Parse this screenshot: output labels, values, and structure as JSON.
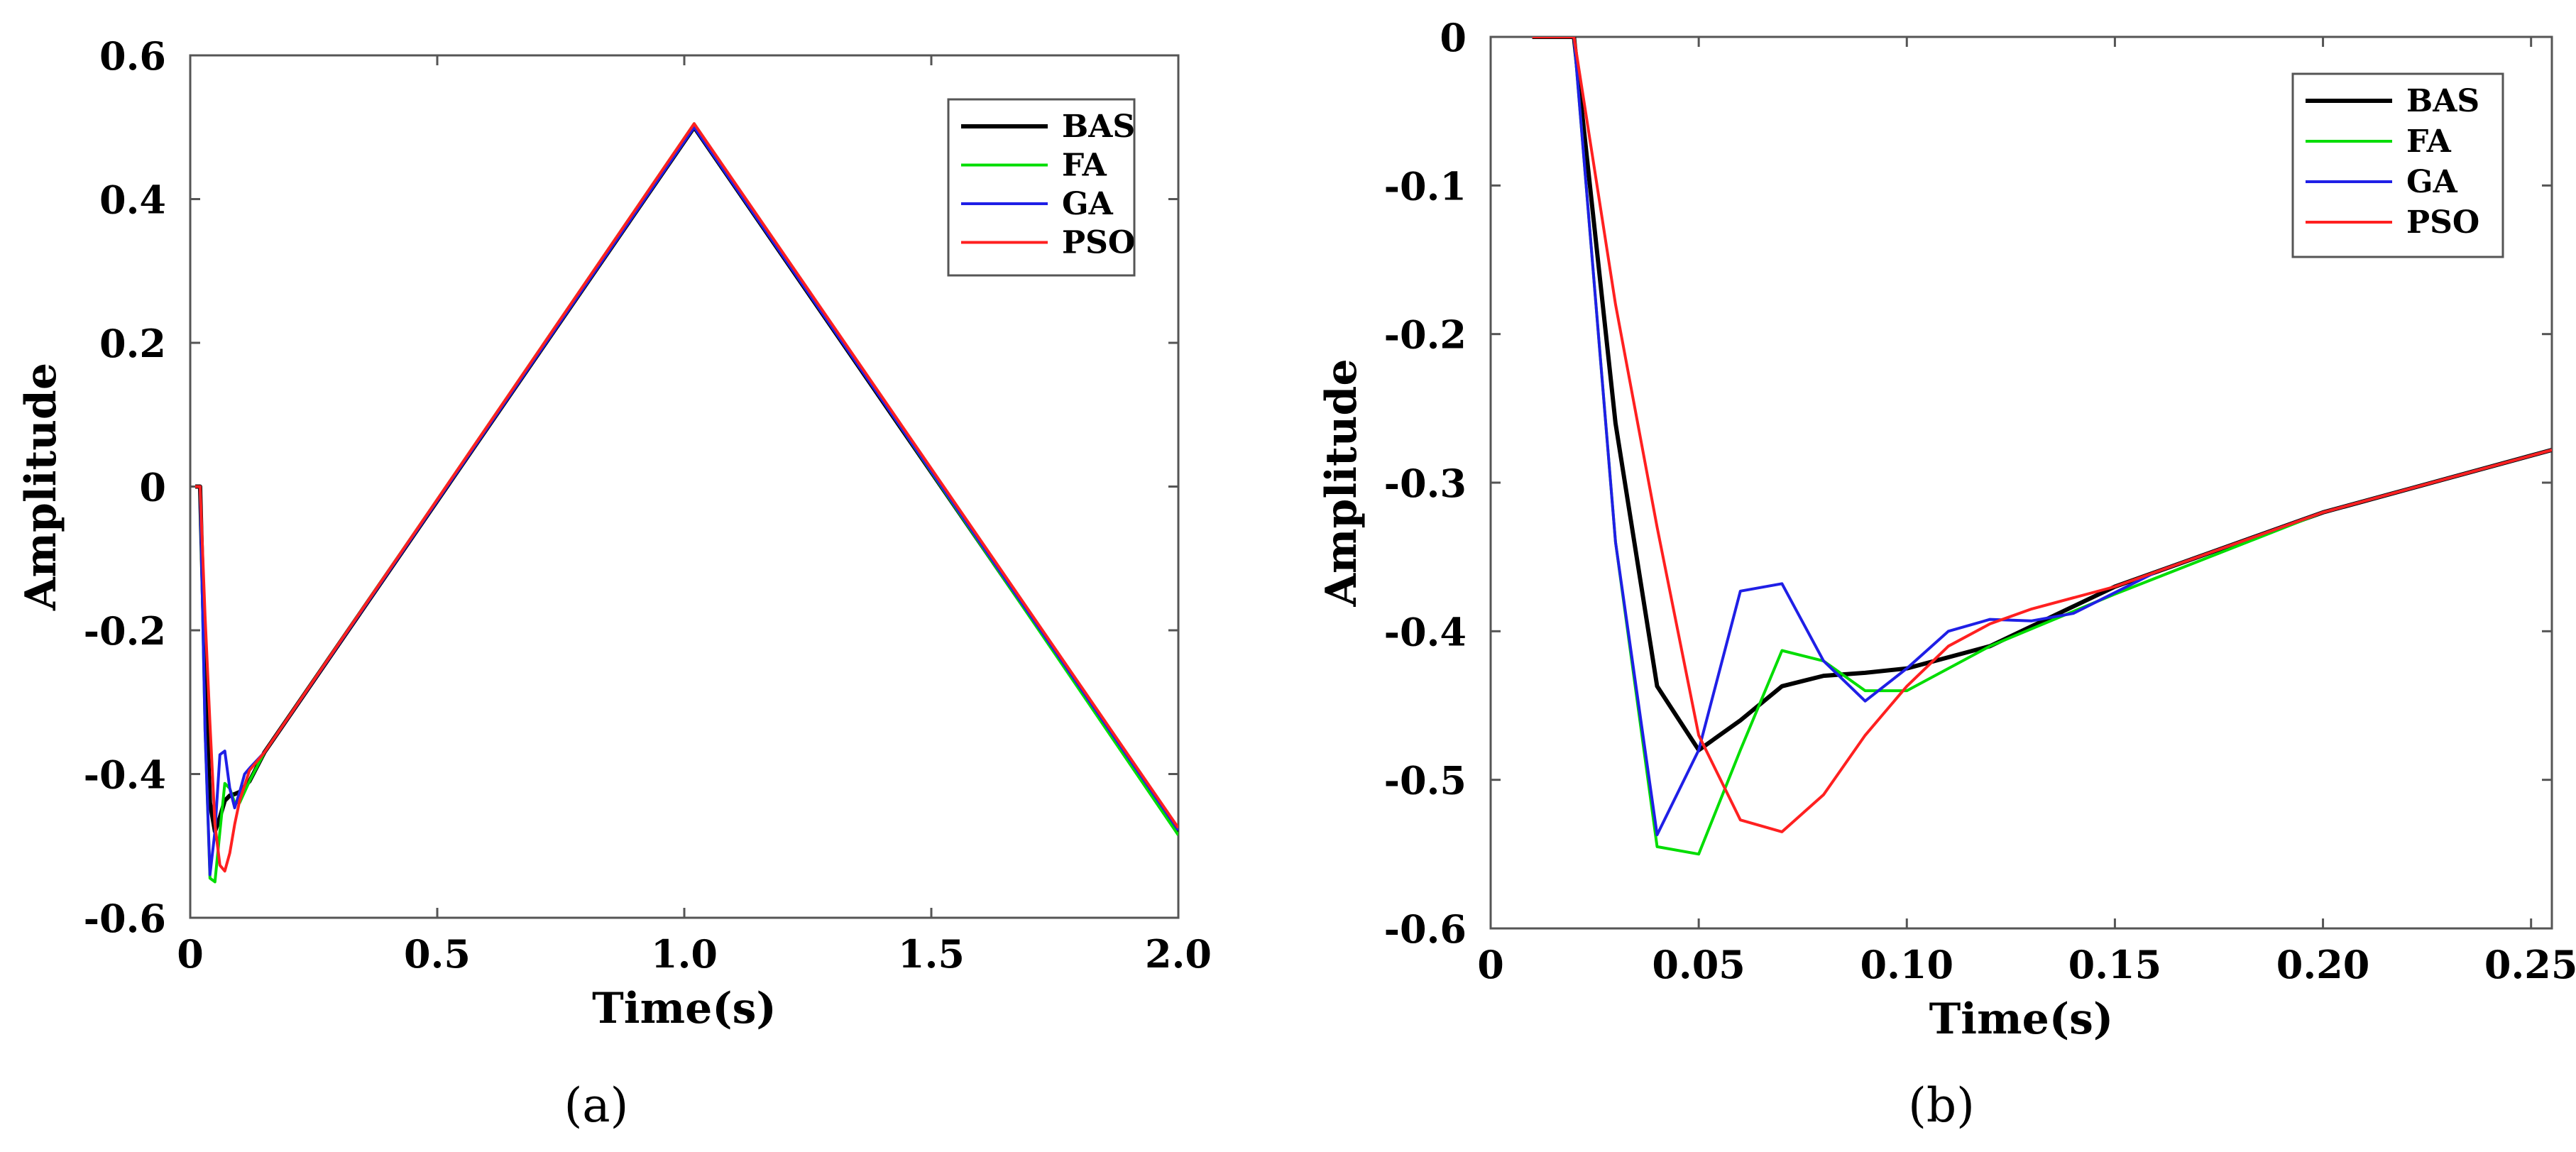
{
  "chart_data": [
    {
      "type": "line",
      "caption": "(a)",
      "xlabel": "Time(s)",
      "ylabel": "Amplitude",
      "xlim": [
        0,
        2.0
      ],
      "ylim": [
        -0.6,
        0.6
      ],
      "xticks": [
        0,
        0.5,
        1.0,
        1.5,
        2.0
      ],
      "xtick_labels": [
        "0",
        "0.5",
        "1.0",
        "1.5",
        "2.0"
      ],
      "yticks": [
        0.6,
        0.4,
        0.2,
        0,
        -0.2,
        -0.4,
        -0.6
      ],
      "ytick_labels": [
        "0.6",
        "0.4",
        "0.2",
        "0",
        "-0.2",
        "-0.4",
        "-0.6"
      ],
      "legend_position": "top-right",
      "series": [
        {
          "name": "BAS",
          "color": "#000000",
          "x": [
            0.01,
            0.02,
            0.03,
            0.04,
            0.05,
            0.06,
            0.07,
            0.08,
            0.09,
            0.1,
            0.12,
            0.15,
            1.02,
            2.0
          ],
          "y": [
            0,
            0,
            -0.26,
            -0.44,
            -0.48,
            -0.46,
            -0.437,
            -0.43,
            -0.428,
            -0.425,
            -0.41,
            -0.37,
            0.5,
            -0.48
          ]
        },
        {
          "name": "FA",
          "color": "#00dd00",
          "x": [
            0.01,
            0.02,
            0.03,
            0.04,
            0.05,
            0.06,
            0.07,
            0.08,
            0.09,
            0.1,
            0.12,
            0.15,
            1.02,
            2.0
          ],
          "y": [
            0,
            0,
            -0.34,
            -0.545,
            -0.55,
            -0.48,
            -0.413,
            -0.42,
            -0.44,
            -0.44,
            -0.41,
            -0.37,
            0.505,
            -0.485
          ]
        },
        {
          "name": "GA",
          "color": "#1f1fe6",
          "x": [
            0.01,
            0.02,
            0.03,
            0.04,
            0.05,
            0.06,
            0.07,
            0.08,
            0.09,
            0.1,
            0.11,
            0.12,
            0.15,
            1.02,
            1.05,
            2.0
          ],
          "y": [
            0,
            0,
            -0.34,
            -0.54,
            -0.48,
            -0.373,
            -0.368,
            -0.42,
            -0.447,
            -0.425,
            -0.4,
            -0.392,
            -0.37,
            0.5,
            0.47,
            -0.478
          ]
        },
        {
          "name": "PSO",
          "color": "#ff2020",
          "x": [
            0.01,
            0.02,
            0.03,
            0.04,
            0.05,
            0.06,
            0.07,
            0.08,
            0.09,
            0.1,
            0.12,
            0.15,
            1.02,
            2.0
          ],
          "y": [
            0,
            0,
            -0.18,
            -0.33,
            -0.47,
            -0.527,
            -0.535,
            -0.51,
            -0.47,
            -0.437,
            -0.395,
            -0.37,
            0.505,
            -0.475
          ]
        }
      ]
    },
    {
      "type": "line",
      "caption": "(b)",
      "xlabel": "Time(s)",
      "ylabel": "Amplitude",
      "xlim": [
        0,
        0.255
      ],
      "ylim": [
        -0.6,
        0
      ],
      "xticks": [
        0,
        0.05,
        0.1,
        0.15,
        0.2,
        0.25
      ],
      "xtick_labels": [
        "0",
        "0.05",
        "0.10",
        "0.15",
        "0.20",
        "0.25"
      ],
      "yticks": [
        0,
        -0.1,
        -0.2,
        -0.3,
        -0.4,
        -0.5,
        -0.6
      ],
      "ytick_labels": [
        "0",
        "-0.1",
        "-0.2",
        "-0.3",
        "-0.4",
        "-0.5",
        "-0.6"
      ],
      "legend_position": "top-right",
      "series": [
        {
          "name": "BAS",
          "color": "#000000",
          "x": [
            0.01,
            0.02,
            0.03,
            0.04,
            0.05,
            0.06,
            0.07,
            0.08,
            0.09,
            0.1,
            0.12,
            0.15,
            0.2,
            0.255
          ],
          "y": [
            0,
            0,
            -0.26,
            -0.437,
            -0.48,
            -0.46,
            -0.437,
            -0.43,
            -0.428,
            -0.425,
            -0.41,
            -0.37,
            -0.32,
            -0.278
          ]
        },
        {
          "name": "FA",
          "color": "#00dd00",
          "x": [
            0.01,
            0.02,
            0.03,
            0.04,
            0.05,
            0.06,
            0.07,
            0.08,
            0.09,
            0.1,
            0.12,
            0.15,
            0.2,
            0.255
          ],
          "y": [
            0,
            0,
            -0.34,
            -0.545,
            -0.55,
            -0.48,
            -0.413,
            -0.42,
            -0.44,
            -0.44,
            -0.41,
            -0.375,
            -0.32,
            -0.278
          ]
        },
        {
          "name": "GA",
          "color": "#1f1fe6",
          "x": [
            0.01,
            0.02,
            0.03,
            0.04,
            0.05,
            0.06,
            0.07,
            0.08,
            0.09,
            0.1,
            0.11,
            0.12,
            0.13,
            0.14,
            0.16,
            0.2,
            0.255
          ],
          "y": [
            0,
            0,
            -0.34,
            -0.537,
            -0.48,
            -0.373,
            -0.368,
            -0.42,
            -0.447,
            -0.425,
            -0.4,
            -0.392,
            -0.393,
            -0.388,
            -0.36,
            -0.32,
            -0.278
          ]
        },
        {
          "name": "PSO",
          "color": "#ff2020",
          "x": [
            0.01,
            0.02,
            0.03,
            0.04,
            0.05,
            0.06,
            0.07,
            0.08,
            0.09,
            0.1,
            0.11,
            0.12,
            0.13,
            0.15,
            0.2,
            0.255
          ],
          "y": [
            0,
            0,
            -0.18,
            -0.33,
            -0.47,
            -0.527,
            -0.535,
            -0.51,
            -0.47,
            -0.437,
            -0.41,
            -0.395,
            -0.385,
            -0.37,
            -0.32,
            -0.278
          ]
        }
      ]
    }
  ]
}
